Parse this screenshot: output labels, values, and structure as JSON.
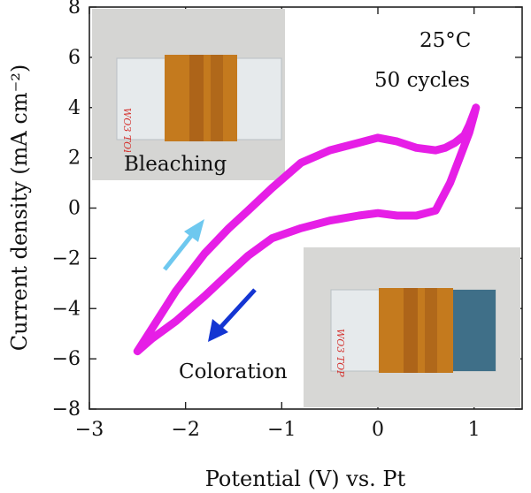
{
  "chart_data": {
    "type": "line",
    "title": "",
    "xlabel": "Potential (V) vs. Pt",
    "ylabel": "Current density (mA cm⁻²)",
    "xlim": [
      -3,
      1.5
    ],
    "ylim": [
      -8,
      8
    ],
    "xticks": [
      -3,
      -2,
      -1,
      0,
      1
    ],
    "yticks": [
      -8,
      -6,
      -4,
      -2,
      0,
      2,
      4,
      6,
      8
    ],
    "xtick_labels": [
      "−3",
      "−2",
      "−1",
      "0",
      "1"
    ],
    "ytick_labels": [
      "−8",
      "−6",
      "−4",
      "−2",
      "0",
      "2",
      "4",
      "6",
      "8"
    ],
    "grid": false,
    "line_color": "#e61ee6",
    "series": [
      {
        "name": "",
        "x": [
          -2.5,
          -2.35,
          -2.1,
          -1.8,
          -1.55,
          -1.35,
          -1.1,
          -0.8,
          -0.5,
          -0.2,
          0.0,
          0.2,
          0.4,
          0.6,
          0.7,
          0.8,
          0.9,
          0.95,
          1.0,
          1.02,
          1.0,
          0.95,
          0.85,
          0.75,
          0.6,
          0.4,
          0.2,
          0.0,
          -0.2,
          -0.5,
          -0.8,
          -1.1,
          -1.35,
          -1.55,
          -1.8,
          -2.1,
          -2.35,
          -2.5
        ],
        "y": [
          -5.7,
          -4.8,
          -3.3,
          -1.8,
          -0.8,
          -0.1,
          0.8,
          1.8,
          2.3,
          2.6,
          2.8,
          2.65,
          2.4,
          2.3,
          2.4,
          2.6,
          2.9,
          3.3,
          3.8,
          4.0,
          3.7,
          3.0,
          2.0,
          1.0,
          -0.1,
          -0.3,
          -0.3,
          -0.2,
          -0.3,
          -0.5,
          -0.8,
          -1.2,
          -1.9,
          -2.6,
          -3.5,
          -4.5,
          -5.2,
          -5.7
        ]
      }
    ],
    "annotations": {
      "temperature": "25°C",
      "cycles": "50 cycles",
      "bleaching": "Bleaching",
      "coloration": "Coloration"
    },
    "arrow_colors": {
      "bleaching": "#6ec8ef",
      "coloration": "#1435d2"
    },
    "sample_photos": [
      {
        "state": "bleached",
        "handwriting": "WO3 TOP",
        "film_colors": [
          "#c47a1e",
          "#a6581a"
        ],
        "glass": "#e8ecef"
      },
      {
        "state": "colored",
        "handwriting": "WO3 TOP",
        "film_colors": [
          "#c47a1e",
          "#a6581a",
          "#3f6f88"
        ],
        "glass": "#e8ecef"
      }
    ]
  }
}
